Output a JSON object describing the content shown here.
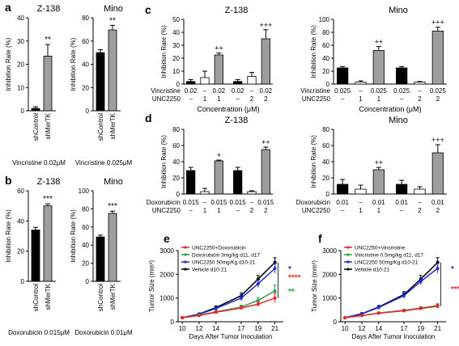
{
  "panel_letters": [
    "a",
    "b",
    "c",
    "d",
    "e",
    "f"
  ],
  "stat_legend": {
    "plus": "+",
    "double_plus": "++",
    "triple_plus": "+++"
  },
  "chart_data": [
    {
      "id": "a1",
      "panel": "a",
      "type": "bar",
      "title": "Z-138",
      "ylabel": "Inhibition Rate (%)",
      "ylim": [
        0,
        40
      ],
      "yticks": [
        0,
        10,
        20,
        30,
        40
      ],
      "categories": [
        "shControl",
        "shMerTK"
      ],
      "values": [
        1,
        23.5
      ],
      "errors": [
        0.7,
        5
      ],
      "colors": [
        "#000000",
        "#9e9e9e"
      ],
      "stars": [
        "",
        "**"
      ],
      "xcaption": "Vincristine 0.02μM"
    },
    {
      "id": "a2",
      "panel": "a",
      "type": "bar",
      "title": "Mino",
      "ylabel": "Inhibition Rate (%)",
      "ylim": [
        0,
        80
      ],
      "yticks": [
        0,
        20,
        40,
        60,
        80
      ],
      "categories": [
        "shControl",
        "shMerTK"
      ],
      "values": [
        50,
        69.5
      ],
      "errors": [
        2.5,
        4
      ],
      "colors": [
        "#000000",
        "#9e9e9e"
      ],
      "stars": [
        "",
        "**"
      ],
      "xcaption": "Vincristine 0.025μM"
    },
    {
      "id": "b1",
      "panel": "b",
      "type": "bar",
      "title": "Z-138",
      "ylabel": "Inhibition Rate (%)",
      "ylim": [
        0,
        60
      ],
      "yticks": [
        0,
        20,
        40,
        60
      ],
      "categories": [
        "shControl",
        "shMerTK"
      ],
      "values": [
        34,
        50
      ],
      "errors": [
        1.8,
        1.3
      ],
      "colors": [
        "#000000",
        "#9e9e9e"
      ],
      "stars": [
        "",
        "***"
      ],
      "xcaption": "Doxorubicin 0.015μM"
    },
    {
      "id": "b2",
      "panel": "b",
      "type": "bar",
      "title": "Mino",
      "ylabel": "Inhibition Rate (%)",
      "ylim": [
        0,
        100
      ],
      "yticks": [
        0,
        20,
        40,
        60,
        80,
        100
      ],
      "categories": [
        "shControl",
        "shMerTK"
      ],
      "values": [
        49,
        75
      ],
      "errors": [
        2,
        2.5
      ],
      "colors": [
        "#000000",
        "#9e9e9e"
      ],
      "stars": [
        "",
        "***"
      ],
      "xcaption": "Doxorubicin 0.01μM"
    },
    {
      "id": "c1",
      "panel": "c",
      "type": "bar",
      "title": "Z-138",
      "ylabel": "Inhibition Rate (%)",
      "ylim": [
        0,
        50
      ],
      "yticks": [
        0,
        10,
        20,
        30,
        40,
        50
      ],
      "values": [
        2,
        5,
        22.5,
        2,
        6,
        35
      ],
      "errors": [
        1.5,
        5,
        1.5,
        1.5,
        3,
        7
      ],
      "colors": [
        "#000000",
        "#ffffff",
        "#9e9e9e",
        "#000000",
        "#ffffff",
        "#9e9e9e"
      ],
      "marks": [
        "",
        "",
        "++",
        "",
        "",
        "+++"
      ],
      "row_labels": [
        "Vincristine",
        "UNC2250"
      ],
      "drug_row": [
        "0.02",
        "–",
        "0.02",
        "0.02",
        "–",
        "0.02"
      ],
      "inhib_row": [
        "–",
        "1",
        "1",
        "–",
        "2",
        "2"
      ],
      "xlabel": "Concentration (μM)"
    },
    {
      "id": "c2",
      "panel": "c",
      "type": "bar",
      "title": "Mino",
      "ylabel": "Inhibition Rate (%)",
      "ylim": [
        0,
        100
      ],
      "yticks": [
        0,
        20,
        40,
        60,
        80,
        100
      ],
      "values": [
        25,
        3,
        52,
        25,
        3,
        82
      ],
      "errors": [
        2,
        2,
        6,
        2,
        1,
        6
      ],
      "colors": [
        "#000000",
        "#ffffff",
        "#9e9e9e",
        "#000000",
        "#ffffff",
        "#9e9e9e"
      ],
      "marks": [
        "",
        "",
        "++",
        "",
        "",
        "+++"
      ],
      "row_labels": [
        "Vincristine",
        "UNC2250"
      ],
      "drug_row": [
        "0.025",
        "–",
        "0.025",
        "0.025",
        "–",
        "0.025"
      ],
      "inhib_row": [
        "–",
        "1",
        "1",
        "–",
        "2",
        "2"
      ],
      "xlabel": "Concentration (μM)"
    },
    {
      "id": "d1",
      "panel": "d",
      "type": "bar",
      "title": "Z-138",
      "ylabel": "Inhibition Rate (%)",
      "ylim": [
        0,
        80
      ],
      "yticks": [
        0,
        20,
        40,
        60,
        80
      ],
      "values": [
        29,
        3,
        41,
        29,
        3,
        55
      ],
      "errors": [
        4,
        4,
        1,
        4,
        1,
        3
      ],
      "colors": [
        "#000000",
        "#ffffff",
        "#9e9e9e",
        "#000000",
        "#ffffff",
        "#9e9e9e"
      ],
      "marks": [
        "",
        "",
        "+",
        "",
        "",
        "++"
      ],
      "row_labels": [
        "Doxorubicin",
        "UNC2250"
      ],
      "drug_row": [
        "0.015",
        "–",
        "0.015",
        "0.015",
        "–",
        "0.015"
      ],
      "inhib_row": [
        "–",
        "1",
        "1",
        "–",
        "2",
        "2"
      ],
      "xlabel": ""
    },
    {
      "id": "d2",
      "panel": "d",
      "type": "bar",
      "title": "Mino",
      "ylabel": "Inhibition Rate (%)",
      "ylim": [
        0,
        80
      ],
      "yticks": [
        0,
        20,
        40,
        60,
        80
      ],
      "values": [
        12,
        6,
        30,
        12,
        6,
        51
      ],
      "errors": [
        6,
        5,
        3,
        5,
        3,
        10
      ],
      "colors": [
        "#000000",
        "#ffffff",
        "#9e9e9e",
        "#000000",
        "#ffffff",
        "#9e9e9e"
      ],
      "marks": [
        "",
        "",
        "++",
        "",
        "",
        "+++"
      ],
      "row_labels": [
        "Doxorubicin",
        "UNC2250"
      ],
      "drug_row": [
        "0.01",
        "–",
        "0.01",
        "0.01",
        "–",
        "0.01"
      ],
      "inhib_row": [
        "–",
        "1",
        "1",
        "–",
        "2",
        "2"
      ],
      "xlabel": ""
    },
    {
      "id": "e",
      "panel": "e",
      "type": "line",
      "ylabel": "Tumor Size (mm³)",
      "xlabel": "Days After Tumor Inoculation",
      "x": [
        10,
        12,
        14,
        17,
        19,
        21
      ],
      "ylim": [
        0,
        3000
      ],
      "yticks": [
        0,
        1000,
        2000,
        3000
      ],
      "series": [
        {
          "name": "UNC2250+Doxorubicin",
          "color": "#e8272a",
          "values": [
            170,
            260,
            400,
            580,
            740,
            1000
          ],
          "errors": [
            20,
            30,
            40,
            60,
            90,
            200
          ]
        },
        {
          "name": "Doxorubicin 3mg/kg d11, d17",
          "color": "#2aa14a",
          "values": [
            170,
            280,
            420,
            620,
            900,
            1300
          ],
          "errors": [
            20,
            30,
            50,
            80,
            120,
            250
          ]
        },
        {
          "name": "UNC2250 50mg/Kg d10-21",
          "color": "#1f2fd0",
          "values": [
            170,
            320,
            560,
            1000,
            1600,
            2250
          ],
          "errors": [
            20,
            40,
            70,
            120,
            150,
            200
          ]
        },
        {
          "name": "Vehicle  d10-21",
          "color": "#000000",
          "values": [
            170,
            330,
            600,
            1100,
            1800,
            2500
          ],
          "errors": [
            20,
            40,
            70,
            120,
            150,
            200
          ]
        }
      ],
      "sig": [
        {
          "text": "*",
          "color": "#1f2fd0",
          "y": 2250
        },
        {
          "text": "****",
          "color": "#e8272a",
          "y": 1900
        },
        {
          "text": "**",
          "color": "#2aa14a",
          "y": 1300
        }
      ]
    },
    {
      "id": "f",
      "panel": "f",
      "type": "line",
      "ylabel": "Tumor Size (mm³)",
      "xlabel": "Days After Tumor Inoculation",
      "x": [
        10,
        12,
        14,
        17,
        19,
        21
      ],
      "ylim": [
        0,
        3000
      ],
      "yticks": [
        0,
        1000,
        2000,
        3000
      ],
      "series": [
        {
          "name": "UNC2250+Vincristine",
          "color": "#e8272a",
          "values": [
            170,
            260,
            360,
            460,
            560,
            650
          ],
          "errors": [
            20,
            30,
            40,
            50,
            60,
            80
          ]
        },
        {
          "name": "Vincristine 0.5mg/kg d11, d17",
          "color": "#2aa14a",
          "values": [
            170,
            260,
            370,
            480,
            580,
            680
          ],
          "errors": [
            20,
            30,
            40,
            50,
            60,
            80
          ]
        },
        {
          "name": "UNC2250 50mg/Kg d10-21",
          "color": "#1f2fd0",
          "values": [
            170,
            330,
            600,
            1100,
            1700,
            2250
          ],
          "errors": [
            20,
            40,
            70,
            120,
            150,
            200
          ]
        },
        {
          "name": "Vehicle  d10-21",
          "color": "#000000",
          "values": [
            170,
            340,
            620,
            1150,
            1800,
            2500
          ],
          "errors": [
            20,
            40,
            70,
            120,
            150,
            200
          ]
        }
      ],
      "sig": [
        {
          "text": "*",
          "color": "#1f2fd0",
          "y": 2250
        },
        {
          "text": "****",
          "color": "#e8272a",
          "y": 1400
        }
      ]
    }
  ]
}
